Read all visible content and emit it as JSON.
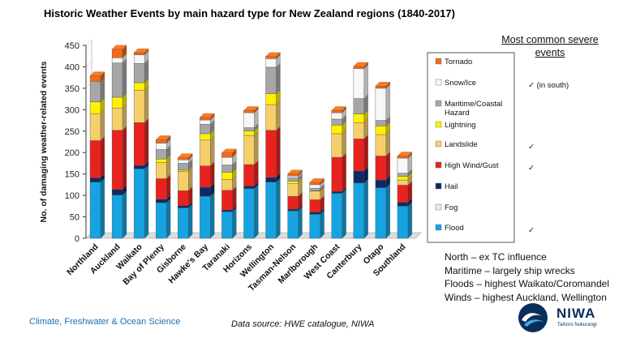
{
  "chart_data": {
    "type": "bar",
    "stacked": true,
    "title": "Historic Weather Events by main hazard type for New Zealand regions (1840-2017)",
    "ylabel": "No. of damaging weather-related events",
    "ylim": [
      0,
      450
    ],
    "yticks": [
      0,
      50,
      100,
      150,
      200,
      250,
      300,
      350,
      400,
      450
    ],
    "categories": [
      "Northland",
      "Auckland",
      "Waikato",
      "Bay of Plenty",
      "Gisborne",
      "Hawke's Bay",
      "Taranaki",
      "Horizons",
      "Wellington",
      "Tasman-Nelson",
      "Marlborough",
      "West Coast",
      "Canterbury",
      "Otago",
      "Southland"
    ],
    "series": [
      {
        "name": "Flood",
        "color": "#16a3e0",
        "values": [
          131,
          101,
          162,
          83,
          71,
          98,
          62,
          116,
          131,
          64,
          56,
          105,
          129,
          118,
          75
        ]
      },
      {
        "name": "Fog",
        "color": "#eaeaea",
        "values": [
          0,
          0,
          0,
          0,
          0,
          0,
          0,
          0,
          0,
          0,
          0,
          0,
          0,
          0,
          0
        ]
      },
      {
        "name": "Hail",
        "color": "#0d2a66",
        "values": [
          10,
          13,
          8,
          8,
          5,
          21,
          4,
          6,
          11,
          4,
          5,
          4,
          28,
          18,
          9
        ]
      },
      {
        "name": "High Wind/Gust",
        "color": "#e8231f",
        "values": [
          87,
          138,
          100,
          48,
          35,
          50,
          46,
          50,
          110,
          30,
          29,
          80,
          75,
          56,
          40
        ]
      },
      {
        "name": "Landslide",
        "color": "#f7cf6a",
        "values": [
          63,
          52,
          75,
          38,
          45,
          60,
          25,
          68,
          60,
          30,
          20,
          55,
          38,
          50,
          12
        ]
      },
      {
        "name": "Lightning",
        "color": "#fff200",
        "values": [
          27,
          25,
          18,
          8,
          3,
          15,
          17,
          10,
          25,
          5,
          1,
          20,
          20,
          20,
          8
        ]
      },
      {
        "name": "Maritime/Coastal Hazard",
        "color": "#a6a6a6",
        "values": [
          48,
          80,
          45,
          22,
          16,
          22,
          17,
          8,
          62,
          8,
          6,
          14,
          36,
          13,
          8
        ]
      },
      {
        "name": "Snow/Ice",
        "color": "#f7f7f7",
        "values": [
          0,
          12,
          20,
          15,
          8,
          10,
          18,
          35,
          20,
          4,
          8,
          15,
          70,
          75,
          35
        ]
      },
      {
        "name": "Tornado",
        "color": "#f26a1b",
        "values": [
          13,
          20,
          5,
          8,
          5,
          6,
          10,
          5,
          5,
          5,
          5,
          5,
          5,
          5,
          5
        ]
      }
    ],
    "legend": {
      "placement": "right",
      "order": [
        "Tornado",
        "Snow/Ice",
        "Maritime/Coastal Hazard",
        "Lightning",
        "Landslide",
        "High Wind/Gust",
        "Hail",
        "Fog",
        "Flood"
      ]
    },
    "grid": false,
    "annotations": {
      "header": "Most common severe events",
      "checks": {
        "Snow/Ice": "✓ (in south)",
        "Landslide": "✓",
        "High Wind/Gust": "✓",
        "Flood": "✓"
      }
    }
  },
  "notes": [
    "North – ex TC influence",
    "Maritime – largely ship wrecks",
    "Floods – highest Waikato/Coromandel",
    "Winds – highest Auckland, Wellington"
  ],
  "footer": {
    "left": "Climate, Freshwater & Ocean Science",
    "source": "Data source: HWE catalogue, NIWA"
  },
  "logo": {
    "name": "NIWA",
    "subtitle": "Taihoro Nukurangi"
  }
}
